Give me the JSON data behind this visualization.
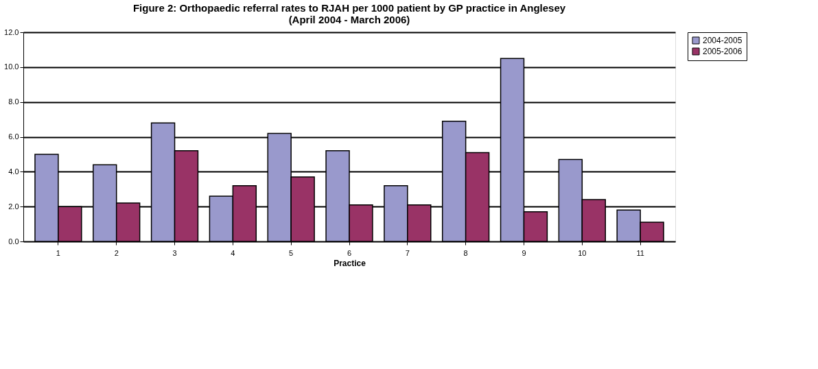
{
  "chart_data": {
    "type": "bar",
    "title": [
      "Figure 2: Orthopaedic referral rates to RJAH per 1000 patient by GP practice in Anglesey",
      "(April 2004 - March 2006)"
    ],
    "xlabel": "Practice",
    "categories": [
      "1",
      "2",
      "3",
      "4",
      "5",
      "6",
      "7",
      "8",
      "9",
      "10",
      "11"
    ],
    "series": [
      {
        "name": "2004-2005",
        "color": "#9999cc",
        "values": [
          5.0,
          4.4,
          6.8,
          2.6,
          6.2,
          5.2,
          3.2,
          6.9,
          10.5,
          4.7,
          1.8
        ]
      },
      {
        "name": "2005-2006",
        "color": "#993366",
        "values": [
          2.0,
          2.2,
          5.2,
          3.2,
          3.7,
          2.1,
          2.1,
          5.1,
          1.7,
          2.4,
          1.1
        ]
      }
    ],
    "ylim": [
      0,
      12
    ],
    "yticks": [
      {
        "value": 0,
        "label": "0.0"
      },
      {
        "value": 2,
        "label": "2.0"
      },
      {
        "value": 4,
        "label": "4.0"
      },
      {
        "value": 6,
        "label": "6.0"
      },
      {
        "value": 8,
        "label": "8.0"
      },
      {
        "value": 10,
        "label": "10.0"
      },
      {
        "value": 12,
        "label": "12.0"
      }
    ],
    "grid": "y",
    "legend": "right"
  }
}
